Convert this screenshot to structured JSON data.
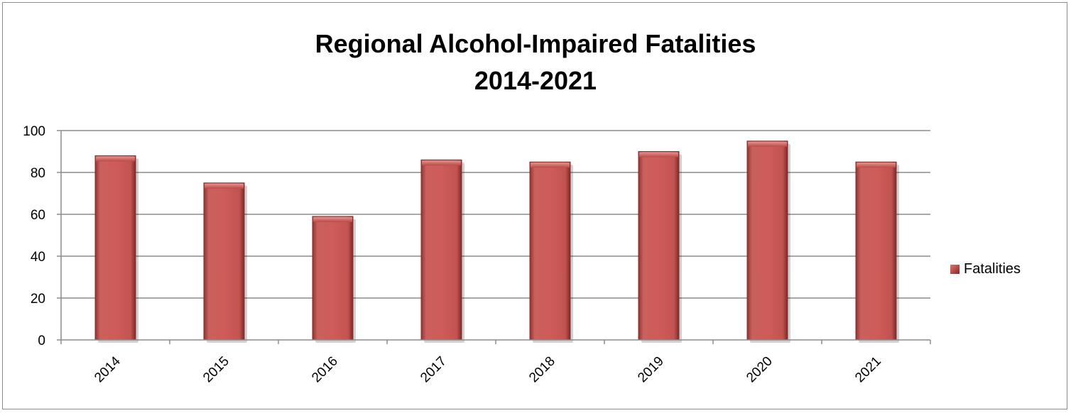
{
  "chart_data": {
    "type": "bar",
    "title_line1": "Regional Alcohol-Impaired Fatalities",
    "title_line2": "2014-2021",
    "categories": [
      "2014",
      "2015",
      "2016",
      "2017",
      "2018",
      "2019",
      "2020",
      "2021"
    ],
    "series": [
      {
        "name": "Fatalities",
        "values": [
          88,
          75,
          59,
          86,
          85,
          90,
          95,
          85
        ]
      }
    ],
    "ylim": [
      0,
      100
    ],
    "yticks": [
      0,
      20,
      40,
      60,
      80,
      100
    ],
    "grid": true,
    "legend_position": "right",
    "bar_color": "#c0504d"
  }
}
